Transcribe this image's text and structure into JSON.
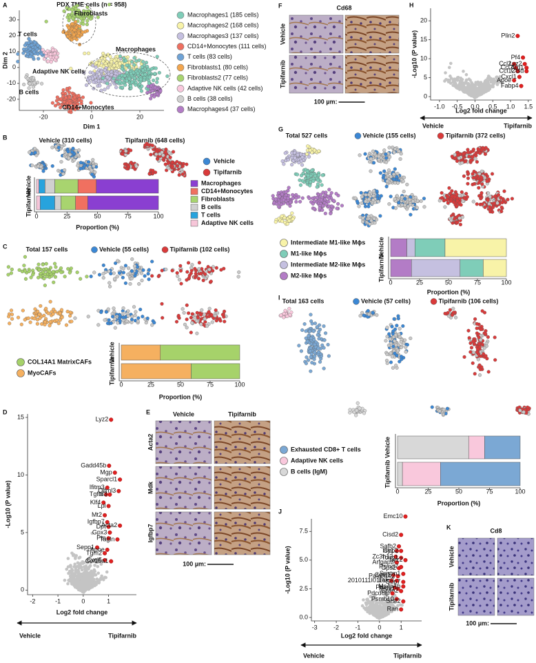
{
  "chart_data": [
    {
      "type": "umap",
      "panel": "A",
      "title": "PDX TME cells (n = 958)",
      "xlabel": "Dim 1",
      "ylabel": "Dim 2",
      "xlim": [
        -30,
        30
      ],
      "ylim": [
        -27,
        36
      ],
      "xticks": [
        -20,
        0,
        20
      ],
      "yticks": [
        -20,
        -10,
        0,
        10,
        20,
        30
      ],
      "series": [
        {
          "name": "Macrophages1 (185 cells)",
          "color": "#7fcdb8"
        },
        {
          "name": "Macrophages2 (168 cells)",
          "color": "#f8f3a8"
        },
        {
          "name": "Macrophages3 (137 cells)",
          "color": "#c5c0e0"
        },
        {
          "name": "CD14+Monocytes (111 cells)",
          "color": "#ee6f60"
        },
        {
          "name": "T cells (83 cells)",
          "color": "#6fa3d6"
        },
        {
          "name": "Fibroblasts1 (80 cells)",
          "color": "#f2a54e"
        },
        {
          "name": "Fibroblasts2 (77 cells)",
          "color": "#a8d46f"
        },
        {
          "name": "Adaptive NK cells (42 cells)",
          "color": "#f9c8dc"
        },
        {
          "name": "B cells (38 cells)",
          "color": "#d0d0d0"
        },
        {
          "name": "Macrophages4 (37 cells)",
          "color": "#b37cc6"
        }
      ],
      "annotations": [
        "Fibroblasts",
        "Macrophages",
        "T cells",
        "Adaptive NK cells",
        "B cells",
        "CD14+Monocytes"
      ]
    },
    {
      "type": "split",
      "panel": "B",
      "views": [
        {
          "title": "Vehicle (310 cells)"
        },
        {
          "title": "Tipifarnib (648 cells)"
        }
      ],
      "groups": [
        {
          "name": "Vehicle",
          "color": "#3b87d4"
        },
        {
          "name": "Tipifarnib",
          "color": "#d93a3a"
        }
      ],
      "categories": [
        "Vehicle",
        "Tipifarnib"
      ],
      "xlabel": "Proportion (%)",
      "xlim": [
        0,
        100
      ],
      "xticks": [
        0,
        25,
        50,
        75,
        100
      ],
      "series": [
        {
          "name": "Adaptive NK cells",
          "color": "#f7c6d9",
          "values": [
            2,
            3
          ]
        },
        {
          "name": "T cells",
          "color": "#27a3dd",
          "values": [
            5,
            12
          ]
        },
        {
          "name": "B cells",
          "color": "#d0d0d0",
          "values": [
            8,
            5
          ]
        },
        {
          "name": "Fibroblasts",
          "color": "#a8d46f",
          "values": [
            19,
            12
          ]
        },
        {
          "name": "CD14+Monocytes",
          "color": "#f07060",
          "values": [
            15,
            10
          ]
        },
        {
          "name": "Macrophages",
          "color": "#8a3fd1",
          "values": [
            51,
            58
          ]
        }
      ]
    },
    {
      "type": "split",
      "panel": "C",
      "views": [
        {
          "title": "Total 157 cells"
        },
        {
          "title": "Vehicle (55 cells)",
          "color": "#3b87d4"
        },
        {
          "title": "Tipifarnib (102 cells)",
          "color": "#d93a3a"
        }
      ],
      "categories": [
        "Vehicle",
        "Tipifarnib"
      ],
      "xlabel": "Proportion (%)",
      "xlim": [
        0,
        100
      ],
      "xticks": [
        0,
        25,
        50,
        75,
        100
      ],
      "series": [
        {
          "name": "MyoCAFs",
          "color": "#f5b060",
          "values": [
            33,
            59
          ]
        },
        {
          "name": "COL14A1 MatrixCAFs",
          "color": "#a6d26a",
          "values": [
            67,
            41
          ]
        }
      ]
    },
    {
      "type": "volcano",
      "panel": "D",
      "xlim": [
        -2.2,
        2.1
      ],
      "ylim": [
        -0.4,
        15.3
      ],
      "xticks": [
        -2,
        -1,
        0,
        1
      ],
      "yticks": [
        0,
        5,
        10,
        15
      ],
      "xlabel": "Log2 fold change",
      "ylabel": "-Log10 (P value)",
      "left": "Vehicle",
      "right": "Tipifarnib",
      "points": {
        "labels": [
          "Lyz2",
          "Gadd45b",
          "Mgp",
          "Sparcl1",
          "Ifitm3",
          "Olfml3",
          "Tgfbi",
          "Id3",
          "Klf4",
          "Lpl",
          "Mt2",
          "Igfbp7",
          "Dpt",
          "Acta2",
          "Gpx3",
          "Ptn",
          "Tagln",
          "Sepp1",
          "Apoe",
          "Tgm2",
          "Cxcl5",
          "Col15a1"
        ],
        "x": [
          1.1,
          1.02,
          1.25,
          1.45,
          0.95,
          1.4,
          0.9,
          1.05,
          0.8,
          1.0,
          0.85,
          0.95,
          1.0,
          1.45,
          1.05,
          1.0,
          1.35,
          0.55,
          0.95,
          0.85,
          0.85,
          1.1
        ],
        "y": [
          14.8,
          10.8,
          10.2,
          9.6,
          8.9,
          8.6,
          8.3,
          8.3,
          7.6,
          7.3,
          6.5,
          5.9,
          5.5,
          5.6,
          5.0,
          4.5,
          4.4,
          3.7,
          3.5,
          3.2,
          2.6,
          2.5
        ]
      }
    },
    {
      "type": "ihc",
      "panel": "E",
      "columns": [
        "Vehicle",
        "Tipifarnib"
      ],
      "rows": [
        "Acta2",
        "Mdk",
        "Igfbp7"
      ],
      "scale": "100 µm:"
    },
    {
      "type": "ihc",
      "panel": "F",
      "title": "Cd68",
      "rows": [
        "Vehicle",
        "Tipifarnib"
      ],
      "scale": "100 µm:"
    },
    {
      "type": "split",
      "panel": "G",
      "views": [
        {
          "title": "Total 527 cells"
        },
        {
          "title": "Vehicle (155 cells)",
          "color": "#3b87d4"
        },
        {
          "title": "Tipifarnib (372 cells)",
          "color": "#d93a3a"
        }
      ],
      "categories": [
        "Vehicle",
        "Tipifarnib"
      ],
      "xlabel": "Proportion (%)",
      "xlim": [
        0,
        100
      ],
      "xticks": [
        0,
        25,
        50,
        75,
        100
      ],
      "series": [
        {
          "name": "M2-like Mϕs",
          "color": "#b37cc6",
          "values": [
            14,
            18
          ]
        },
        {
          "name": "Intermediate M2-like Mϕs",
          "color": "#c5c0e0",
          "values": [
            7,
            42
          ]
        },
        {
          "name": "M1-like Mϕs",
          "color": "#7fcdb8",
          "values": [
            26,
            20
          ]
        },
        {
          "name": "Intermediate M1-like Mϕs",
          "color": "#f8f3a8",
          "values": [
            53,
            20
          ]
        }
      ]
    },
    {
      "type": "volcano",
      "panel": "H",
      "xlim": [
        -1.25,
        1.6
      ],
      "xticks": [
        {
          "value": -1,
          "label": "-1.0"
        },
        -0.5,
        {
          "value": 0,
          "label": "0.0"
        },
        0.5,
        {
          "value": 1,
          "label": "1.0"
        },
        1.5
      ],
      "ylim": [
        -0.9,
        23.3
      ],
      "yticks": [
        0,
        5,
        10,
        15,
        20
      ],
      "xlabel": "Log2 fold change",
      "ylabel": "-Log10 (P value)",
      "left": "Vehicle",
      "right": "Tipifarnib",
      "points": {
        "labels": [
          "Plin2",
          "Pf4",
          "Ccl2",
          "Lyz2",
          "Ccl7",
          "Arg1",
          "Ccl12",
          "Ctsd",
          "Cxcl1",
          "Apoe",
          "Fabp4"
        ],
        "x": [
          1.2,
          1.35,
          1.1,
          1.4,
          1.15,
          1.45,
          1.2,
          1.45,
          1.25,
          1.1,
          1.3
        ],
        "y": [
          16,
          10.3,
          8.6,
          8.6,
          7.6,
          7.6,
          6.7,
          6.7,
          5.2,
          4.3,
          2.8
        ]
      }
    },
    {
      "type": "split",
      "panel": "I",
      "views": [
        {
          "title": "Total 163 cells"
        },
        {
          "title": "Vehicle (57 cells)",
          "color": "#3b87d4"
        },
        {
          "title": "Tipifarnib (106 cells)",
          "color": "#d93a3a"
        }
      ],
      "categories": [
        "Vehicle",
        "Tipifarnib"
      ],
      "xlabel": "Proportion (%)",
      "xlim": [
        0,
        100
      ],
      "xticks": [
        0,
        25,
        50,
        75,
        100
      ],
      "series": [
        {
          "name": "B cells (IgM)",
          "color": "#d8d8d8",
          "values": [
            58,
            4
          ]
        },
        {
          "name": "Adaptive NK cells",
          "color": "#f9c8dc",
          "values": [
            13,
            31
          ]
        },
        {
          "name": "Exhausted CD8+ T cells",
          "color": "#7ba8d4",
          "values": [
            29,
            65
          ]
        }
      ]
    },
    {
      "type": "volcano",
      "panel": "J",
      "xlim": [
        -3.15,
        1.95
      ],
      "xticks": [
        -3,
        -2,
        -1,
        0,
        1
      ],
      "ylim": [
        -0.3,
        8.6
      ],
      "yticks": [
        {
          "value": 0,
          "label": "0.0"
        },
        2.5,
        {
          "value": 5,
          "label": "5.0"
        },
        7.5
      ],
      "xlabel": "Log2 fold change",
      "ylabel": "-Log10 (P value)",
      "left": "Vehicle",
      "right": "Tipifarnib",
      "points": {
        "labels": [
          "Emc10",
          "Cisd2",
          "Safb2",
          "Isy1",
          "Gbp2",
          "Zc3h13",
          "Tcirg1",
          "Arfgap2",
          "Lyz2",
          "Gps2",
          "Psmd7",
          "Cela1",
          "Pafah1b2",
          "Sqstm1",
          "Lsm3",
          "2010111I01Rik",
          "Gbp7",
          "Ptpn6",
          "Prex1",
          "Grap2",
          "Ms4a4b",
          "Pdcd6ip",
          "Psmb10",
          "Srsf2",
          "Ran"
        ],
        "x": [
          1.2,
          1.0,
          0.9,
          0.8,
          1.0,
          0.75,
          1.0,
          0.8,
          1.2,
          0.9,
          1.0,
          0.65,
          0.85,
          1.1,
          0.8,
          0.55,
          1.1,
          0.7,
          0.85,
          1.0,
          1.1,
          0.6,
          0.8,
          1.1,
          1.0
        ],
        "y": [
          8.8,
          7.2,
          6.2,
          5.8,
          5.8,
          5.3,
          5.2,
          4.8,
          5.0,
          4.3,
          4.4,
          3.7,
          3.6,
          3.8,
          3.2,
          3.2,
          3.1,
          2.6,
          2.5,
          2.3,
          2.7,
          2.1,
          1.6,
          1.4,
          0.7
        ]
      }
    },
    {
      "type": "ihc",
      "panel": "K",
      "title": "Cd8",
      "rows": [
        "Vehicle",
        "Tipifarnib"
      ],
      "scale": "100 µm:"
    }
  ]
}
